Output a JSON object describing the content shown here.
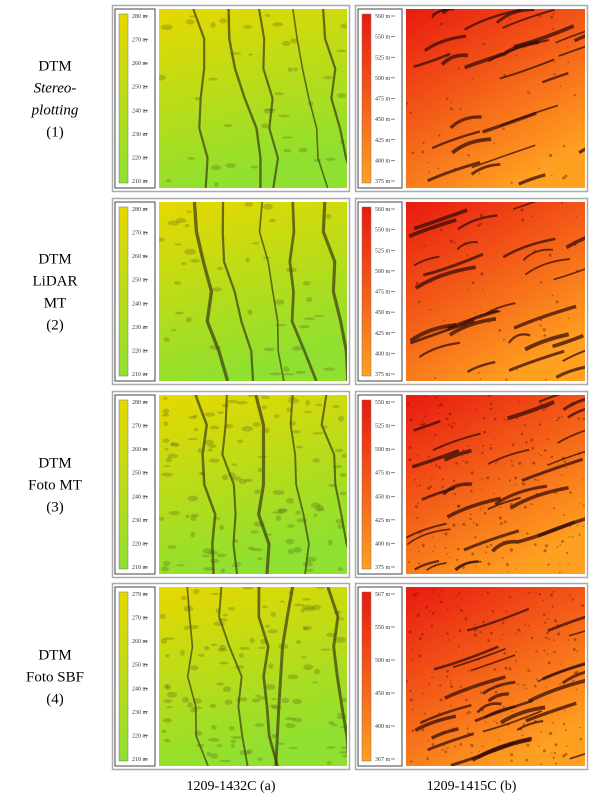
{
  "rows": [
    {
      "label": [
        {
          "text": "DTM",
          "style": "normal"
        },
        {
          "text": "Stereo-",
          "style": "italic"
        },
        {
          "text": "plotting",
          "style": "italic"
        },
        {
          "text": "(1)",
          "style": "normal"
        }
      ],
      "panels": [
        {
          "colors": [
            "#e6d800",
            "#8fe030"
          ],
          "legend": [
            "280 m",
            "270 m",
            "260 m",
            "250 m",
            "240 m",
            "230 m",
            "220 m",
            "210 m"
          ]
        },
        {
          "colors": [
            "#e81a10",
            "#ffa020"
          ],
          "legend": [
            "560 m",
            "550 m",
            "525 m",
            "500 m",
            "475 m",
            "450 m",
            "425 m",
            "400 m",
            "375 m"
          ]
        }
      ]
    },
    {
      "label": [
        {
          "text": "DTM",
          "style": "normal"
        },
        {
          "text": "LiDAR",
          "style": "normal"
        },
        {
          "text": "MT",
          "style": "normal"
        },
        {
          "text": "(2)",
          "style": "normal"
        }
      ],
      "panels": [
        {
          "colors": [
            "#e6d800",
            "#8fe030"
          ],
          "legend": [
            "280 m",
            "270 m",
            "260 m",
            "250 m",
            "240 m",
            "230 m",
            "220 m",
            "210 m"
          ]
        },
        {
          "colors": [
            "#e81a10",
            "#ffa020"
          ],
          "legend": [
            "560 m",
            "550 m",
            "525 m",
            "500 m",
            "475 m",
            "450 m",
            "425 m",
            "400 m",
            "375 m"
          ]
        }
      ]
    },
    {
      "label": [
        {
          "text": "DTM",
          "style": "normal"
        },
        {
          "text": "Foto MT",
          "style": "normal"
        },
        {
          "text": "(3)",
          "style": "normal"
        }
      ],
      "panels": [
        {
          "colors": [
            "#e6d800",
            "#8fe030"
          ],
          "legend": [
            "280 m",
            "270 m",
            "260 m",
            "250 m",
            "240 m",
            "230 m",
            "220 m",
            "210 m"
          ]
        },
        {
          "colors": [
            "#e81a10",
            "#ffa020"
          ],
          "legend": [
            "550 m",
            "525 m",
            "500 m",
            "475 m",
            "450 m",
            "425 m",
            "400 m",
            "375 m"
          ]
        }
      ]
    },
    {
      "label": [
        {
          "text": "DTM",
          "style": "normal"
        },
        {
          "text": "Foto SBF",
          "style": "normal"
        },
        {
          "text": "(4)",
          "style": "normal"
        }
      ],
      "panels": [
        {
          "colors": [
            "#e6d800",
            "#8fe030"
          ],
          "legend": [
            "279 m",
            "270 m",
            "260 m",
            "250 m",
            "240 m",
            "230 m",
            "220 m",
            "210 m"
          ]
        },
        {
          "colors": [
            "#e81a10",
            "#ffa020"
          ],
          "legend": [
            "567 m",
            "550 m",
            "500 m",
            "450 m",
            "400 m",
            "367 m"
          ]
        }
      ]
    }
  ],
  "columns": [
    "1209-1432C (a)",
    "1209-1415C (b)"
  ]
}
